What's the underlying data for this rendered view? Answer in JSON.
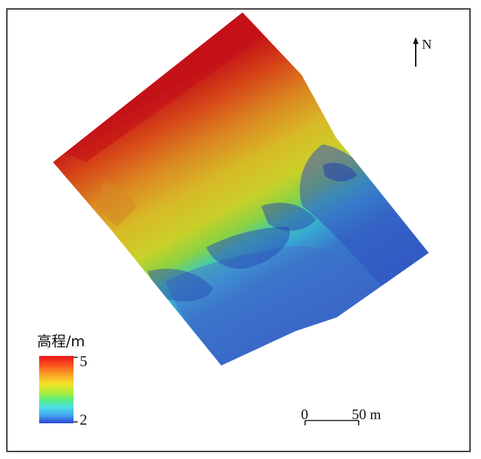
{
  "map": {
    "north_label": "N",
    "legend": {
      "title": "高程/m",
      "max_label": "5",
      "min_label": "2",
      "max_value": 5,
      "min_value": 2,
      "ramp_colors": [
        "#e8141c",
        "#fb6a1c",
        "#fbb22a",
        "#f2e42c",
        "#b6ee36",
        "#5aee6a",
        "#4ce6d8",
        "#48b4f2",
        "#2f60e2",
        "#2536cc"
      ]
    },
    "scale_bar": {
      "start_label": "0",
      "end_label": "50 m"
    },
    "colors": {
      "high": "#e31a1c",
      "mid_high": "#fd8d3c",
      "mid": "#f7e12d",
      "mid_low": "#7ee85a",
      "low_mid": "#4fc4ef",
      "low": "#2a4fd8",
      "frame": "#3a3a3a"
    }
  }
}
